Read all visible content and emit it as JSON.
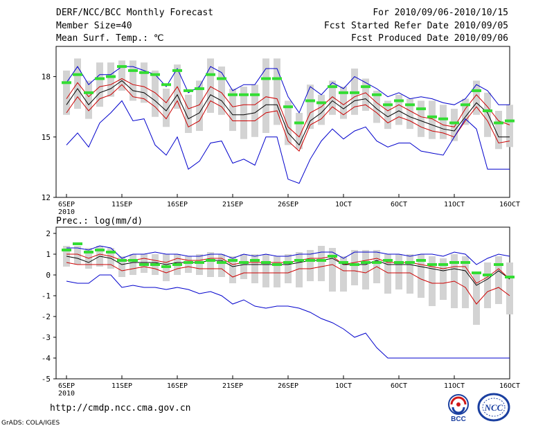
{
  "header": {
    "title": "DERF/NCC/BCC Monthly Forecast",
    "member_size": "Member Size=40",
    "variable": "Mean Surf. Temp.: ℃",
    "period": "For 2010/09/06-2010/10/15",
    "started": "Fcst Started Refer Date 2010/09/05",
    "produced": "Fcst Produced Date 2010/09/06"
  },
  "footer": {
    "url": "http://cmdp.ncc.cma.gov.cn",
    "grads": "GrADS: COLA/IGES",
    "logo_bcc": "BCC",
    "logo_ncc": "NCC"
  },
  "colors": {
    "envelope": "#0000cc",
    "spread": "#cc0000",
    "mean": "#000000",
    "box": "#d3d3d3",
    "member_mark": "#33dd33"
  },
  "chart_data": [
    {
      "type": "line",
      "title": "Mean Surf. Temp.: ℃",
      "ylim": [
        12,
        19.5
      ],
      "yticks": [
        12,
        15,
        18
      ],
      "xlim": [
        -0.5,
        41
      ],
      "xticks": [
        0,
        5,
        10,
        15,
        20,
        25,
        30,
        35,
        40
      ],
      "xticklabels": [
        "6SEP",
        "11SEP",
        "16SEP",
        "21SEP",
        "26SEP",
        "1OCT",
        "6OCT",
        "11OCT",
        "16OCT"
      ],
      "xsublabel": "2010",
      "series": [
        {
          "name": "max",
          "values": [
            17.7,
            18.5,
            17.6,
            18.1,
            18.1,
            18.5,
            18.5,
            18.3,
            18.1,
            17.5,
            18.4,
            17.2,
            17.5,
            18.5,
            18.2,
            17.3,
            17.6,
            17.6,
            18.4,
            18.4,
            17.0,
            16.2,
            17.5,
            17.1,
            17.7,
            17.4,
            18.0,
            17.7,
            17.4,
            17.0,
            17.2,
            16.9,
            17.0,
            16.9,
            16.7,
            16.6,
            16.9,
            17.6,
            17.3,
            16.6,
            16.6
          ]
        },
        {
          "name": "upper",
          "values": [
            16.9,
            17.7,
            17.0,
            17.5,
            17.6,
            17.9,
            17.6,
            17.5,
            17.2,
            16.7,
            17.5,
            16.4,
            16.6,
            17.5,
            17.2,
            16.5,
            16.6,
            16.6,
            17.0,
            16.9,
            15.5,
            15.0,
            16.2,
            16.5,
            17.0,
            16.6,
            17.0,
            17.2,
            16.7,
            16.3,
            16.6,
            16.3,
            16.0,
            15.9,
            15.6,
            15.5,
            16.4,
            17.1,
            16.5,
            15.8,
            15.6
          ]
        },
        {
          "name": "mean",
          "values": [
            16.6,
            17.4,
            16.6,
            17.2,
            17.4,
            17.8,
            17.3,
            17.2,
            16.8,
            16.3,
            17.1,
            15.9,
            16.2,
            17.1,
            16.8,
            16.1,
            16.1,
            16.2,
            16.6,
            16.6,
            15.2,
            14.6,
            15.8,
            16.2,
            16.8,
            16.4,
            16.8,
            16.9,
            16.4,
            16.0,
            16.3,
            16.0,
            15.8,
            15.6,
            15.4,
            15.3,
            16.0,
            16.7,
            16.2,
            15.0,
            15.0
          ]
        },
        {
          "name": "lower",
          "values": [
            16.2,
            17.0,
            16.3,
            16.9,
            17.1,
            17.6,
            17.0,
            16.9,
            16.5,
            15.9,
            16.8,
            15.5,
            15.8,
            16.8,
            16.5,
            15.8,
            15.8,
            15.8,
            16.2,
            16.3,
            14.8,
            14.3,
            15.6,
            15.9,
            16.5,
            16.1,
            16.5,
            16.6,
            16.2,
            15.7,
            16.0,
            15.8,
            15.5,
            15.3,
            15.2,
            15.0,
            15.8,
            16.5,
            15.8,
            14.7,
            14.8
          ]
        },
        {
          "name": "min",
          "values": [
            14.6,
            15.2,
            14.5,
            15.7,
            16.2,
            16.8,
            15.8,
            15.9,
            14.6,
            14.1,
            15.0,
            13.4,
            13.8,
            14.7,
            14.8,
            13.7,
            13.9,
            13.6,
            15.0,
            15.0,
            12.9,
            12.7,
            13.9,
            14.8,
            15.4,
            14.9,
            15.3,
            15.5,
            14.8,
            14.5,
            14.7,
            14.7,
            14.3,
            14.2,
            14.1,
            15.0,
            15.9,
            15.4,
            13.4,
            13.4,
            13.4
          ]
        }
      ],
      "box_low": [
        16.1,
        16.4,
        15.9,
        16.5,
        17.0,
        17.3,
        16.8,
        16.7,
        16.0,
        15.5,
        16.4,
        15.2,
        15.3,
        16.2,
        16.1,
        15.3,
        14.9,
        15.0,
        15.2,
        15.6,
        14.6,
        14.4,
        15.4,
        15.6,
        16.1,
        15.9,
        16.1,
        16.3,
        15.7,
        15.4,
        15.6,
        15.4,
        15.0,
        14.9,
        14.9,
        14.8,
        15.6,
        16.1,
        15.0,
        14.4,
        14.5
      ],
      "box_high": [
        18.3,
        18.9,
        17.8,
        18.7,
        18.7,
        18.8,
        18.8,
        18.7,
        18.3,
        17.4,
        18.6,
        17.1,
        17.8,
        18.9,
        18.5,
        17.4,
        17.5,
        17.6,
        18.9,
        18.9,
        16.8,
        16.2,
        17.6,
        17.1,
        17.8,
        17.5,
        18.4,
        17.9,
        17.3,
        16.8,
        17.1,
        16.9,
        16.8,
        16.8,
        16.6,
        16.4,
        16.9,
        17.8,
        17.2,
        16.3,
        16.6
      ],
      "member_marks": [
        17.7,
        18.1,
        17.2,
        17.9,
        18.0,
        18.5,
        18.3,
        18.2,
        18.1,
        17.6,
        18.3,
        17.3,
        17.4,
        18.1,
        17.9,
        17.1,
        17.1,
        17.1,
        17.9,
        17.9,
        16.5,
        15.7,
        16.8,
        16.7,
        17.5,
        17.2,
        17.2,
        17.5,
        17.1,
        16.6,
        16.8,
        16.6,
        16.4,
        16.0,
        15.9,
        15.7,
        16.6,
        17.3,
        16.3,
        15.7,
        15.8
      ]
    },
    {
      "type": "line",
      "title": "Prec.: log(mm/d)",
      "ylim": [
        -5,
        2.3
      ],
      "yticks": [
        -5,
        -4,
        -3,
        -2,
        -1,
        0,
        1,
        2
      ],
      "xlim": [
        -0.5,
        41
      ],
      "xticks": [
        0,
        5,
        10,
        15,
        20,
        25,
        30,
        35,
        40
      ],
      "xticklabels": [
        "6SEP",
        "11SEP",
        "16SEP",
        "21SEP",
        "26SEP",
        "1OCT",
        "6OCT",
        "11OCT",
        "16OCT"
      ],
      "xsublabel": "2010",
      "series": [
        {
          "name": "max",
          "values": [
            1.3,
            1.3,
            1.2,
            1.4,
            1.3,
            0.8,
            1.0,
            1.0,
            1.1,
            1.0,
            1.0,
            0.9,
            0.9,
            1.0,
            1.0,
            0.8,
            1.0,
            0.9,
            1.0,
            0.9,
            0.9,
            1.0,
            1.0,
            1.1,
            1.1,
            0.8,
            1.1,
            1.1,
            1.1,
            1.0,
            1.0,
            0.9,
            1.0,
            1.0,
            0.9,
            1.1,
            1.0,
            0.5,
            0.8,
            1.0,
            0.9
          ]
        },
        {
          "name": "upper",
          "values": [
            1.0,
            1.0,
            0.8,
            1.0,
            0.9,
            0.7,
            0.7,
            0.8,
            0.7,
            0.6,
            0.8,
            0.7,
            0.7,
            0.8,
            0.8,
            0.5,
            0.6,
            0.6,
            0.6,
            0.6,
            0.6,
            0.7,
            0.8,
            0.8,
            0.9,
            0.5,
            0.6,
            0.7,
            0.8,
            0.6,
            0.6,
            0.6,
            0.5,
            0.4,
            0.3,
            0.4,
            0.4,
            -0.4,
            -0.1,
            0.3,
            -0.2
          ]
        },
        {
          "name": "mean",
          "values": [
            0.9,
            0.8,
            0.6,
            0.9,
            0.8,
            0.5,
            0.6,
            0.6,
            0.6,
            0.5,
            0.6,
            0.6,
            0.6,
            0.7,
            0.7,
            0.4,
            0.5,
            0.5,
            0.5,
            0.5,
            0.5,
            0.6,
            0.7,
            0.7,
            0.8,
            0.5,
            0.5,
            0.5,
            0.7,
            0.5,
            0.5,
            0.5,
            0.4,
            0.3,
            0.2,
            0.3,
            0.2,
            -0.5,
            -0.2,
            0.2,
            -0.2
          ]
        },
        {
          "name": "lower",
          "values": [
            0.6,
            0.5,
            0.5,
            0.5,
            0.5,
            0.2,
            0.3,
            0.4,
            0.3,
            0.1,
            0.3,
            0.4,
            0.3,
            0.3,
            0.3,
            -0.1,
            0.1,
            0.1,
            0.1,
            0.1,
            0.1,
            0.3,
            0.3,
            0.4,
            0.5,
            0.2,
            0.2,
            0.1,
            0.4,
            0.1,
            0.1,
            0.1,
            -0.2,
            -0.4,
            -0.4,
            -0.3,
            -0.6,
            -1.4,
            -0.8,
            -0.6,
            -1.0
          ]
        },
        {
          "name": "min",
          "values": [
            -0.3,
            -0.4,
            -0.4,
            0.0,
            0.0,
            -0.6,
            -0.5,
            -0.6,
            -0.6,
            -0.7,
            -0.6,
            -0.7,
            -0.9,
            -0.8,
            -1.0,
            -1.4,
            -1.2,
            -1.5,
            -1.6,
            -1.5,
            -1.5,
            -1.6,
            -1.8,
            -2.1,
            -2.3,
            -2.6,
            -3.0,
            -2.8,
            -3.5,
            -4.0,
            -4.0,
            -4.0,
            -4.0,
            -4.0,
            -4.0,
            -4.0,
            -4.0,
            -4.0,
            -4.0,
            -4.0,
            -4.0
          ]
        }
      ],
      "box_low": [
        0.4,
        0.5,
        0.3,
        0.4,
        0.3,
        -0.1,
        0.0,
        0.1,
        0.0,
        -0.3,
        0.0,
        0.1,
        0.0,
        -0.1,
        -0.1,
        -0.4,
        -0.2,
        -0.4,
        -0.6,
        -0.6,
        -0.4,
        -0.6,
        -0.3,
        -0.3,
        -0.8,
        -0.8,
        -0.5,
        -0.7,
        -0.4,
        -0.9,
        -0.7,
        -0.9,
        -1.1,
        -1.5,
        -1.2,
        -1.6,
        -1.6,
        -2.4,
        -1.6,
        -1.4,
        -1.9
      ],
      "box_high": [
        1.4,
        1.4,
        1.3,
        1.4,
        1.3,
        0.9,
        1.0,
        1.0,
        1.0,
        1.0,
        1.0,
        0.9,
        1.0,
        1.1,
        1.0,
        0.9,
        1.0,
        1.0,
        1.0,
        0.9,
        1.0,
        1.1,
        1.2,
        1.4,
        1.3,
        0.9,
        1.2,
        1.2,
        1.2,
        1.0,
        1.0,
        1.0,
        1.0,
        0.9,
        0.8,
        1.0,
        0.9,
        0.1,
        0.6,
        0.9,
        0.6
      ],
      "member_marks": [
        1.2,
        1.5,
        1.1,
        1.2,
        1.1,
        0.7,
        0.7,
        0.5,
        0.5,
        0.4,
        0.5,
        0.6,
        0.6,
        0.7,
        0.6,
        0.7,
        0.6,
        0.7,
        0.6,
        0.5,
        0.6,
        0.7,
        0.7,
        0.7,
        0.9,
        0.6,
        0.5,
        0.6,
        0.6,
        0.7,
        0.6,
        0.6,
        0.7,
        0.5,
        0.5,
        0.6,
        0.6,
        0.1,
        0.0,
        0.5,
        -0.1
      ]
    }
  ]
}
